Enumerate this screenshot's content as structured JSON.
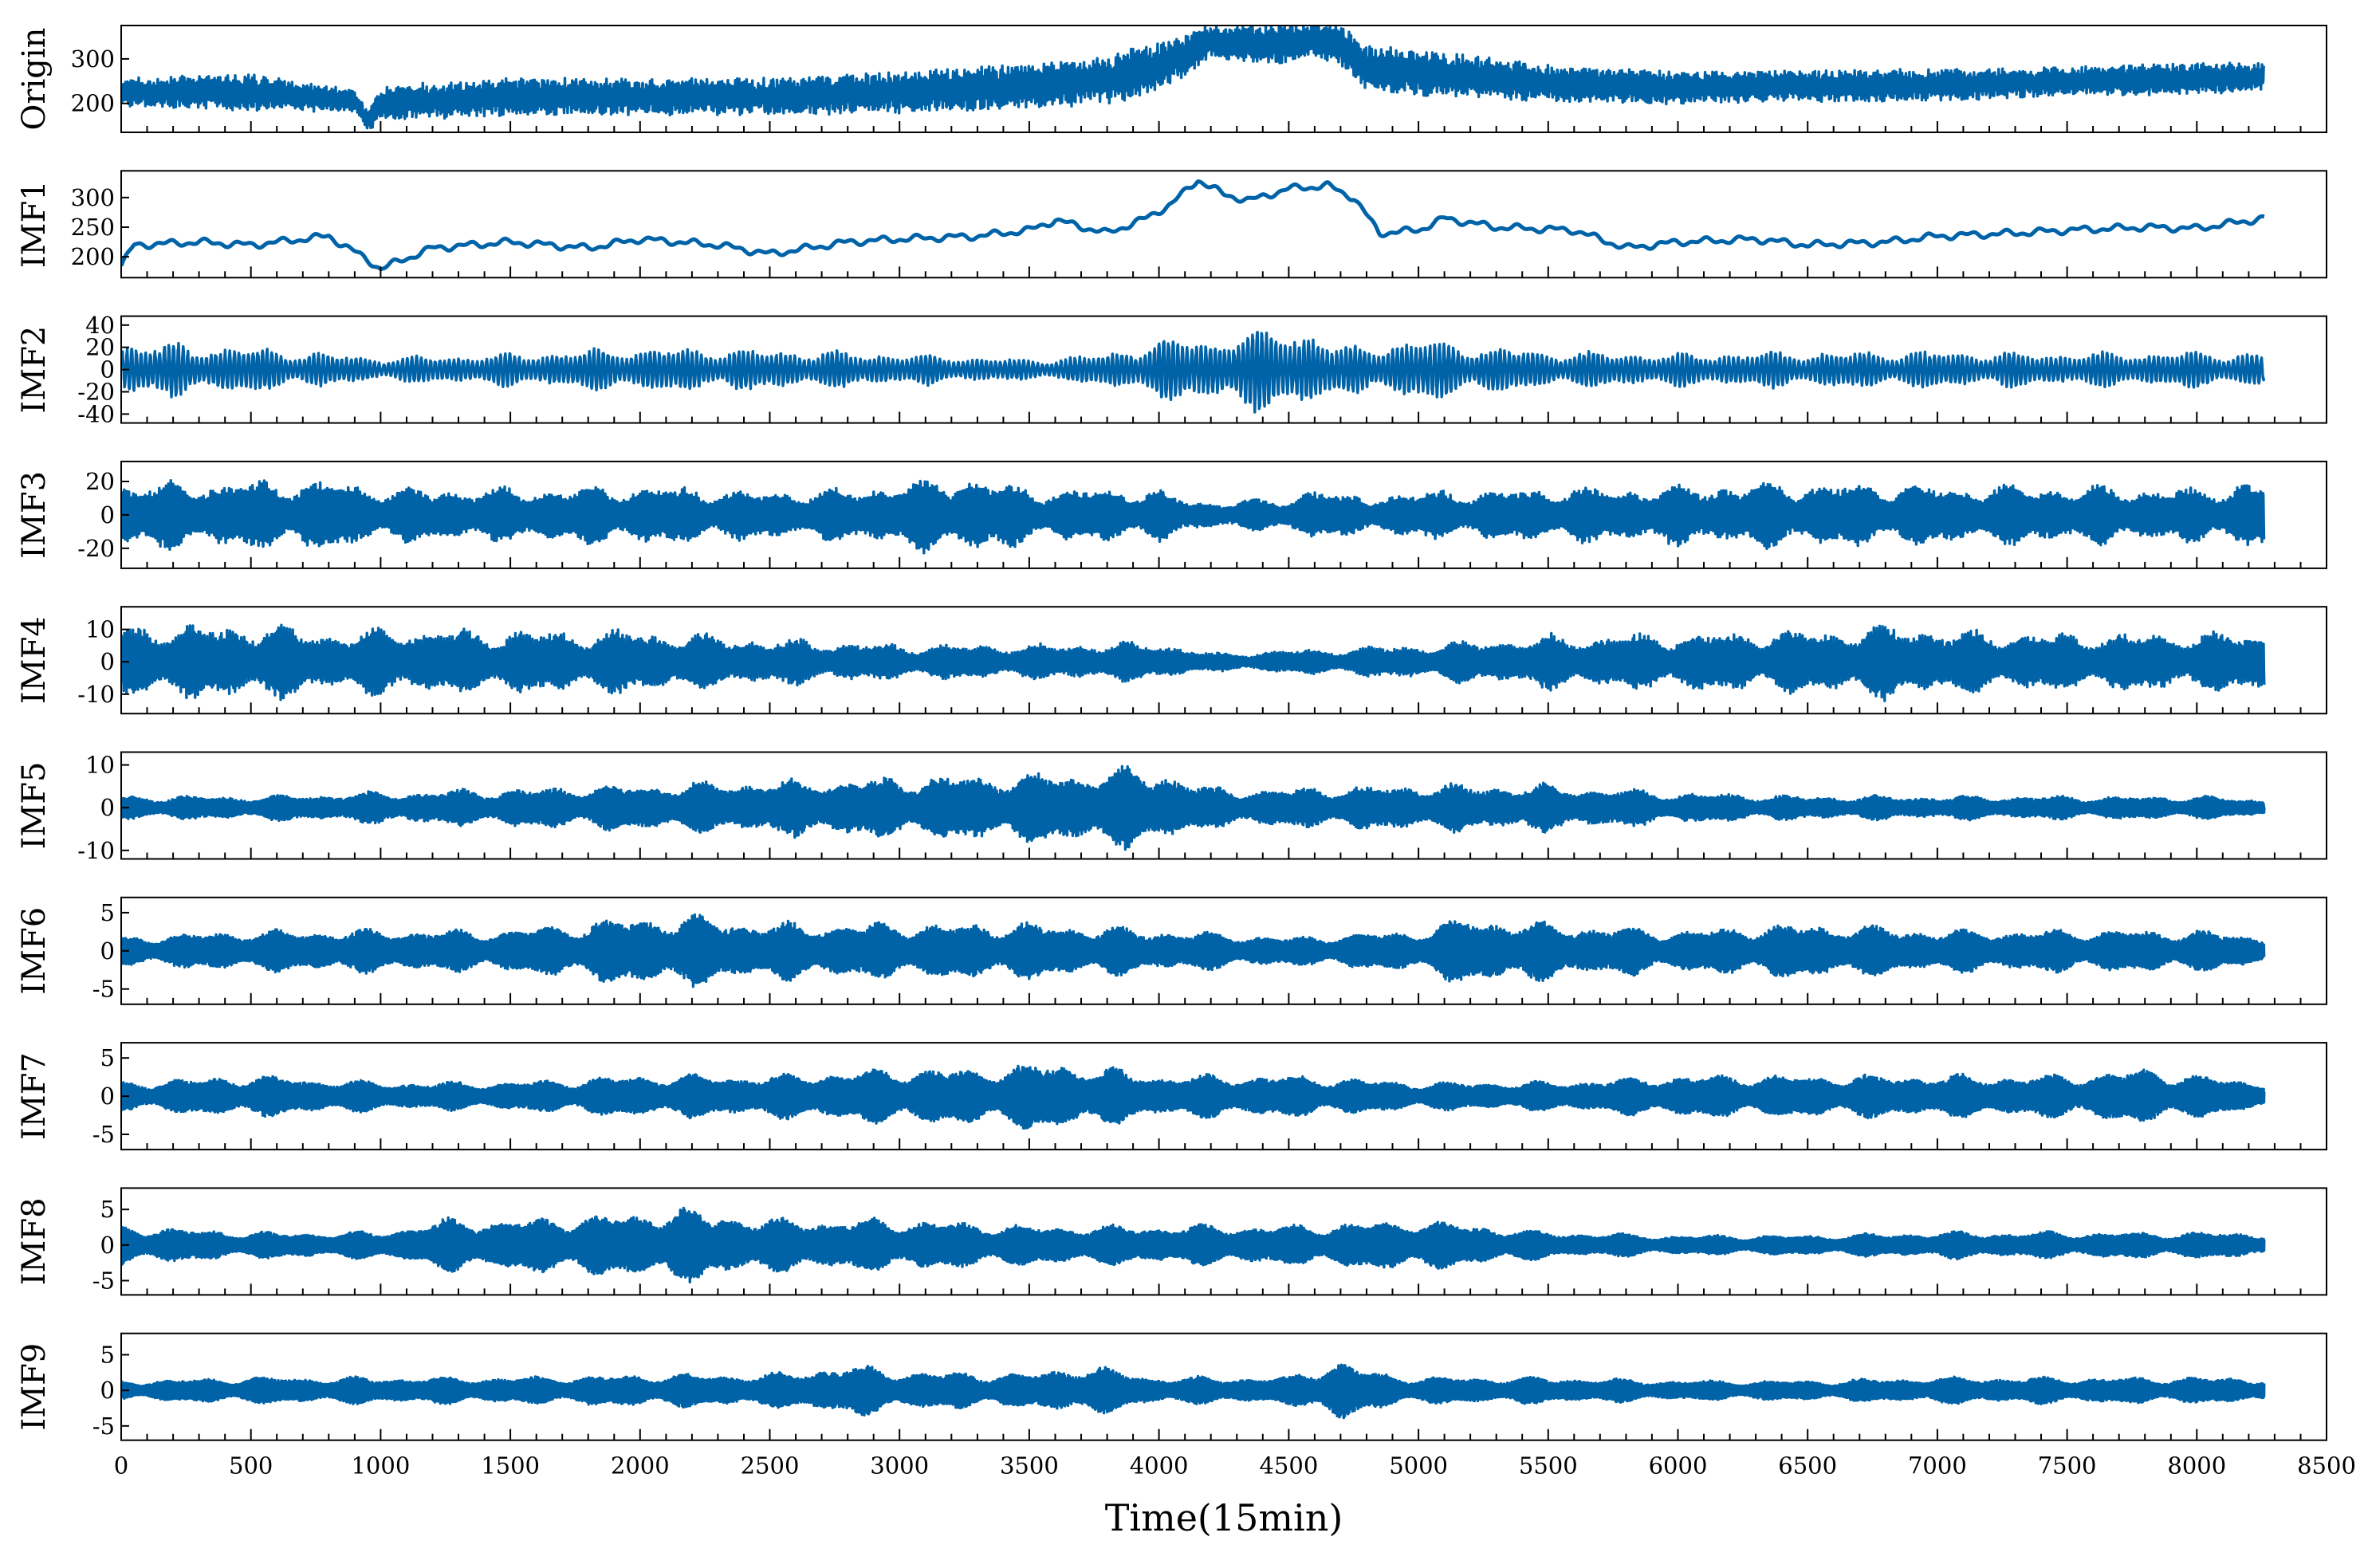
{
  "chart_data": {
    "type": "line",
    "layout": "stacked-subplots",
    "xlabel": "Time(15min)",
    "xlim": [
      0,
      8500
    ],
    "x_ticks": [
      0,
      500,
      1000,
      1500,
      2000,
      2500,
      3000,
      3500,
      4000,
      4500,
      5000,
      5500,
      6000,
      6500,
      7000,
      7500,
      8000,
      8500
    ],
    "n_samples": 8260,
    "line_color": "#0063A8",
    "grid": false,
    "panels": [
      {
        "ylabel": "Origin",
        "ylim": [
          135,
          375
        ],
        "yticks": [
          200,
          300
        ],
        "kind": "level",
        "envelope_x": [
          0,
          500,
          900,
          950,
          1000,
          1500,
          2000,
          2500,
          3000,
          3500,
          3800,
          4000,
          4200,
          4400,
          4600,
          4700,
          4800,
          5000,
          5500,
          6000,
          6500,
          7000,
          7500,
          8000,
          8260
        ],
        "envelope_mean": [
          225,
          225,
          205,
          160,
          200,
          215,
          215,
          215,
          225,
          240,
          255,
          280,
          340,
          330,
          345,
          330,
          280,
          270,
          245,
          235,
          240,
          240,
          250,
          255,
          260
        ],
        "envelope_amp": [
          30,
          40,
          25,
          20,
          40,
          40,
          40,
          40,
          45,
          50,
          55,
          55,
          35,
          45,
          40,
          45,
          50,
          50,
          40,
          35,
          35,
          35,
          30,
          35,
          30
        ]
      },
      {
        "ylabel": "IMF1",
        "ylim": [
          165,
          345
        ],
        "yticks": [
          200,
          250,
          300
        ],
        "kind": "smooth",
        "trend_x": [
          0,
          50,
          300,
          500,
          800,
          950,
          1000,
          1200,
          1500,
          1800,
          2000,
          2300,
          2500,
          2800,
          3000,
          3300,
          3500,
          3600,
          3800,
          3950,
          4050,
          4150,
          4250,
          4350,
          4500,
          4650,
          4750,
          4850,
          5000,
          5100,
          5300,
          5600,
          5800,
          6000,
          6300,
          6500,
          6800,
          7000,
          7300,
          7500,
          7800,
          8000,
          8260
        ],
        "trend_y": [
          185,
          220,
          225,
          220,
          235,
          195,
          180,
          215,
          225,
          215,
          230,
          220,
          205,
          225,
          230,
          235,
          245,
          262,
          240,
          265,
          290,
          330,
          305,
          295,
          315,
          320,
          300,
          240,
          245,
          265,
          250,
          245,
          215,
          225,
          230,
          220,
          225,
          235,
          240,
          245,
          250,
          248,
          265
        ]
      },
      {
        "ylabel": "IMF2",
        "ylim": [
          -48,
          48
        ],
        "yticks": [
          -40,
          -20,
          0,
          20,
          40
        ],
        "kind": "oscillation",
        "period": 18,
        "envelope_x": [
          0,
          500,
          1000,
          1500,
          2000,
          2500,
          3000,
          3500,
          3800,
          4000,
          4200,
          4300,
          4450,
          4600,
          4700,
          4800,
          5000,
          5500,
          6000,
          6500,
          7000,
          7500,
          8000,
          8260
        ],
        "envelope_amp": [
          28,
          22,
          12,
          16,
          22,
          20,
          16,
          10,
          16,
          30,
          30,
          40,
          40,
          40,
          20,
          25,
          30,
          18,
          16,
          18,
          18,
          16,
          18,
          16
        ]
      },
      {
        "ylabel": "IMF3",
        "ylim": [
          -32,
          32
        ],
        "yticks": [
          -20,
          0,
          20
        ],
        "kind": "oscillation",
        "period": 9,
        "envelope_x": [
          0,
          300,
          800,
          1000,
          1500,
          2000,
          2500,
          2800,
          3200,
          3300,
          3500,
          4000,
          4100,
          4500,
          4600,
          4700,
          5000,
          5500,
          6000,
          6500,
          7000,
          7500,
          8000,
          8260
        ],
        "envelope_amp": [
          22,
          22,
          24,
          18,
          18,
          20,
          16,
          18,
          26,
          26,
          18,
          18,
          10,
          10,
          24,
          12,
          16,
          18,
          20,
          22,
          20,
          20,
          18,
          24
        ]
      },
      {
        "ylabel": "IMF4",
        "ylim": [
          -16,
          17
        ],
        "yticks": [
          -10,
          0,
          10
        ],
        "kind": "oscillation",
        "period": 5.5,
        "envelope_x": [
          0,
          500,
          900,
          1000,
          1500,
          2000,
          2500,
          3000,
          3500,
          4000,
          4200,
          4500,
          5000,
          5500,
          6000,
          6500,
          6900,
          7000,
          7500,
          8000,
          8260
        ],
        "envelope_amp": [
          13,
          13,
          10,
          12,
          11,
          11,
          8,
          6,
          6,
          7,
          3,
          4,
          6,
          9,
          10,
          11,
          13,
          11,
          10,
          10,
          11
        ]
      },
      {
        "ylabel": "IMF5",
        "ylim": [
          -12,
          13
        ],
        "yticks": [
          -10,
          0,
          10
        ],
        "kind": "oscillation",
        "period": 3.5,
        "envelope_x": [
          0,
          500,
          1000,
          1500,
          2000,
          2500,
          3000,
          3500,
          3800,
          4000,
          4200,
          4500,
          5000,
          5500,
          6000,
          6500,
          7000,
          7500,
          8000,
          8260
        ],
        "envelope_amp": [
          3,
          3,
          4,
          5,
          6,
          7,
          8,
          9,
          10,
          10,
          5,
          5,
          6,
          6,
          4,
          3,
          3,
          3,
          3,
          2
        ]
      },
      {
        "ylabel": "IMF6",
        "ylim": [
          -7,
          7
        ],
        "yticks": [
          -5,
          0,
          5
        ],
        "kind": "oscillation",
        "period": 2.5,
        "envelope_x": [
          0,
          500,
          1000,
          1500,
          2000,
          2200,
          2500,
          3000,
          3500,
          4000,
          4500,
          5000,
          5200,
          5500,
          6000,
          6500,
          7000,
          7500,
          8000,
          8260
        ],
        "envelope_amp": [
          2,
          3,
          3,
          3,
          5,
          5,
          4,
          4,
          4,
          3,
          2,
          3,
          5,
          4,
          3,
          4,
          3,
          3,
          3,
          2
        ]
      },
      {
        "ylabel": "IMF7",
        "ylim": [
          -7,
          7
        ],
        "yticks": [
          -5,
          0,
          5
        ],
        "kind": "oscillation",
        "period": 2.1,
        "envelope_x": [
          0,
          500,
          1000,
          1500,
          2000,
          2500,
          3000,
          3300,
          3600,
          4000,
          4500,
          5000,
          5500,
          6000,
          6500,
          7000,
          7500,
          7800,
          8000,
          8260
        ],
        "envelope_amp": [
          2,
          3,
          2,
          2,
          3,
          3,
          4,
          4,
          5,
          3,
          3,
          2,
          2,
          3,
          3,
          3,
          3,
          4,
          3,
          2
        ]
      },
      {
        "ylabel": "IMF8",
        "ylim": [
          -7,
          8
        ],
        "yticks": [
          -5,
          0,
          5
        ],
        "kind": "oscillation",
        "period": 2.1,
        "envelope_x": [
          0,
          500,
          1000,
          1250,
          1500,
          2000,
          2100,
          2500,
          3000,
          3500,
          4000,
          4500,
          5000,
          5500,
          6000,
          6500,
          7000,
          7500,
          8000,
          8260
        ],
        "envelope_amp": [
          3,
          2,
          2,
          4,
          4,
          5,
          6,
          4,
          4,
          3,
          3,
          3,
          4,
          2,
          1.5,
          1.5,
          2,
          2,
          2,
          2
        ]
      },
      {
        "ylabel": "IMF9",
        "ylim": [
          -7,
          8
        ],
        "yticks": [
          -5,
          0,
          5
        ],
        "kind": "oscillation",
        "period": 2.1,
        "envelope_x": [
          0,
          500,
          1000,
          1500,
          2000,
          2500,
          2800,
          3000,
          3500,
          3700,
          4000,
          4500,
          4700,
          4800,
          5000,
          5500,
          6000,
          6500,
          7000,
          7500,
          8000,
          8260
        ],
        "envelope_amp": [
          1.5,
          2,
          2,
          2,
          2.5,
          2.5,
          4,
          3,
          2.5,
          4,
          2,
          2,
          5,
          3,
          2,
          2,
          1.5,
          1.5,
          2,
          2,
          2,
          2
        ]
      }
    ]
  }
}
